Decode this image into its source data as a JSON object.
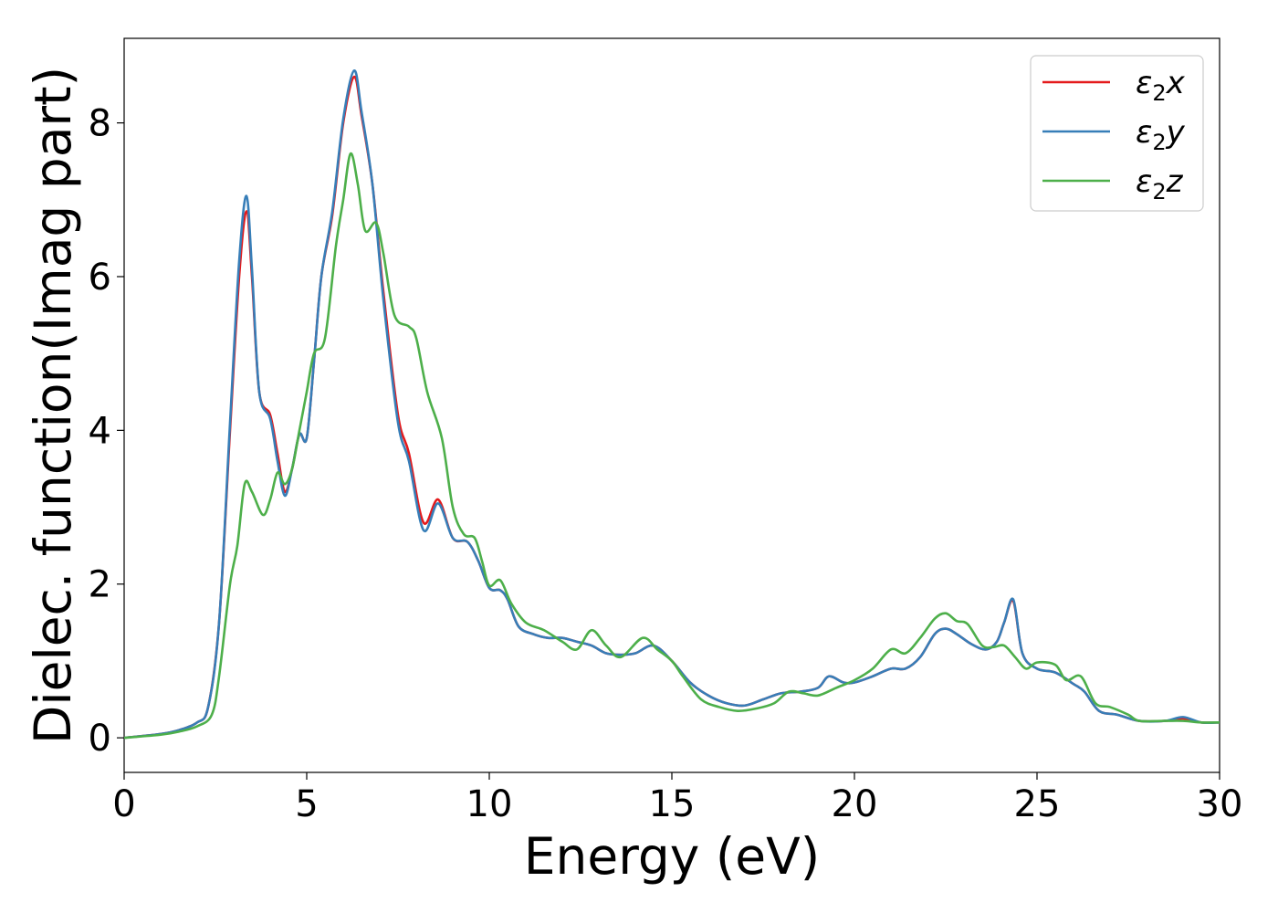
{
  "chart_data": {
    "type": "line",
    "title": "",
    "xlabel": "Energy (eV)",
    "ylabel": "Dielec. function(Imag part)",
    "xlim": [
      0,
      30
    ],
    "ylim": [
      -0.45,
      9.1
    ],
    "xticks": [
      0,
      5,
      10,
      15,
      20,
      25,
      30
    ],
    "yticks": [
      0,
      2,
      4,
      6,
      8
    ],
    "grid": false,
    "legend_position": "top-right",
    "series": [
      {
        "name": "ε₂x",
        "legend_base": "ε",
        "legend_sub": "2",
        "legend_suffix": "x",
        "color": "#e41a1c",
        "points": [
          [
            0,
            0
          ],
          [
            1,
            0.05
          ],
          [
            1.5,
            0.1
          ],
          [
            2,
            0.2
          ],
          [
            2.3,
            0.4
          ],
          [
            2.6,
            1.5
          ],
          [
            2.9,
            4.0
          ],
          [
            3.15,
            6.0
          ],
          [
            3.35,
            6.85
          ],
          [
            3.5,
            6.0
          ],
          [
            3.7,
            4.5
          ],
          [
            4.0,
            4.2
          ],
          [
            4.2,
            3.7
          ],
          [
            4.4,
            3.2
          ],
          [
            4.6,
            3.5
          ],
          [
            4.8,
            3.95
          ],
          [
            5.0,
            3.9
          ],
          [
            5.2,
            4.9
          ],
          [
            5.4,
            6.0
          ],
          [
            5.7,
            6.8
          ],
          [
            6.0,
            8.0
          ],
          [
            6.3,
            8.6
          ],
          [
            6.5,
            8.1
          ],
          [
            6.8,
            7.2
          ],
          [
            7.1,
            5.8
          ],
          [
            7.5,
            4.2
          ],
          [
            7.8,
            3.7
          ],
          [
            8.2,
            2.8
          ],
          [
            8.6,
            3.1
          ],
          [
            9.0,
            2.6
          ],
          [
            9.4,
            2.55
          ],
          [
            9.7,
            2.3
          ],
          [
            10.0,
            1.95
          ],
          [
            10.3,
            1.92
          ],
          [
            10.5,
            1.8
          ],
          [
            10.8,
            1.45
          ],
          [
            11.2,
            1.35
          ],
          [
            11.6,
            1.3
          ],
          [
            12.0,
            1.3
          ],
          [
            12.4,
            1.25
          ],
          [
            12.8,
            1.2
          ],
          [
            13.2,
            1.1
          ],
          [
            13.6,
            1.08
          ],
          [
            14.0,
            1.1
          ],
          [
            14.5,
            1.2
          ],
          [
            15.0,
            1.0
          ],
          [
            15.5,
            0.72
          ],
          [
            16.0,
            0.55
          ],
          [
            16.5,
            0.45
          ],
          [
            17.0,
            0.42
          ],
          [
            17.5,
            0.5
          ],
          [
            18.0,
            0.58
          ],
          [
            18.5,
            0.6
          ],
          [
            19.0,
            0.65
          ],
          [
            19.3,
            0.8
          ],
          [
            19.7,
            0.72
          ],
          [
            20.0,
            0.72
          ],
          [
            20.5,
            0.8
          ],
          [
            21.0,
            0.9
          ],
          [
            21.4,
            0.9
          ],
          [
            21.8,
            1.05
          ],
          [
            22.2,
            1.35
          ],
          [
            22.5,
            1.42
          ],
          [
            22.8,
            1.35
          ],
          [
            23.2,
            1.22
          ],
          [
            23.6,
            1.15
          ],
          [
            23.9,
            1.25
          ],
          [
            24.1,
            1.5
          ],
          [
            24.35,
            1.78
          ],
          [
            24.6,
            1.1
          ],
          [
            25.0,
            0.9
          ],
          [
            25.5,
            0.85
          ],
          [
            26.0,
            0.7
          ],
          [
            26.3,
            0.6
          ],
          [
            26.7,
            0.35
          ],
          [
            27.2,
            0.3
          ],
          [
            27.8,
            0.22
          ],
          [
            28.5,
            0.22
          ],
          [
            29.0,
            0.25
          ],
          [
            29.5,
            0.2
          ],
          [
            30.0,
            0.2
          ]
        ]
      },
      {
        "name": "ε₂y",
        "legend_base": "ε",
        "legend_sub": "2",
        "legend_suffix": "y",
        "color": "#377eb8",
        "points": [
          [
            0,
            0
          ],
          [
            1,
            0.05
          ],
          [
            1.5,
            0.1
          ],
          [
            2,
            0.2
          ],
          [
            2.3,
            0.4
          ],
          [
            2.6,
            1.5
          ],
          [
            2.9,
            4.1
          ],
          [
            3.15,
            6.2
          ],
          [
            3.35,
            7.05
          ],
          [
            3.5,
            6.1
          ],
          [
            3.7,
            4.5
          ],
          [
            4.0,
            4.15
          ],
          [
            4.2,
            3.6
          ],
          [
            4.4,
            3.15
          ],
          [
            4.6,
            3.5
          ],
          [
            4.8,
            3.95
          ],
          [
            5.0,
            3.9
          ],
          [
            5.2,
            4.9
          ],
          [
            5.4,
            6.0
          ],
          [
            5.7,
            6.85
          ],
          [
            6.0,
            8.05
          ],
          [
            6.3,
            8.68
          ],
          [
            6.5,
            8.15
          ],
          [
            6.8,
            7.2
          ],
          [
            7.1,
            5.7
          ],
          [
            7.5,
            4.1
          ],
          [
            7.8,
            3.6
          ],
          [
            8.2,
            2.7
          ],
          [
            8.6,
            3.05
          ],
          [
            9.0,
            2.6
          ],
          [
            9.4,
            2.55
          ],
          [
            9.7,
            2.3
          ],
          [
            10.0,
            1.95
          ],
          [
            10.3,
            1.92
          ],
          [
            10.5,
            1.8
          ],
          [
            10.8,
            1.45
          ],
          [
            11.2,
            1.35
          ],
          [
            11.6,
            1.3
          ],
          [
            12.0,
            1.3
          ],
          [
            12.4,
            1.25
          ],
          [
            12.8,
            1.2
          ],
          [
            13.2,
            1.1
          ],
          [
            13.6,
            1.08
          ],
          [
            14.0,
            1.1
          ],
          [
            14.5,
            1.2
          ],
          [
            15.0,
            1.0
          ],
          [
            15.5,
            0.72
          ],
          [
            16.0,
            0.55
          ],
          [
            16.5,
            0.45
          ],
          [
            17.0,
            0.42
          ],
          [
            17.5,
            0.5
          ],
          [
            18.0,
            0.58
          ],
          [
            18.5,
            0.6
          ],
          [
            19.0,
            0.65
          ],
          [
            19.3,
            0.8
          ],
          [
            19.7,
            0.72
          ],
          [
            20.0,
            0.72
          ],
          [
            20.5,
            0.8
          ],
          [
            21.0,
            0.9
          ],
          [
            21.4,
            0.9
          ],
          [
            21.8,
            1.05
          ],
          [
            22.2,
            1.35
          ],
          [
            22.5,
            1.42
          ],
          [
            22.8,
            1.35
          ],
          [
            23.2,
            1.22
          ],
          [
            23.6,
            1.15
          ],
          [
            23.9,
            1.25
          ],
          [
            24.1,
            1.5
          ],
          [
            24.35,
            1.8
          ],
          [
            24.6,
            1.1
          ],
          [
            25.0,
            0.9
          ],
          [
            25.5,
            0.85
          ],
          [
            26.0,
            0.7
          ],
          [
            26.3,
            0.6
          ],
          [
            26.7,
            0.35
          ],
          [
            27.2,
            0.3
          ],
          [
            27.8,
            0.22
          ],
          [
            28.5,
            0.22
          ],
          [
            29.0,
            0.27
          ],
          [
            29.5,
            0.2
          ],
          [
            30.0,
            0.2
          ]
        ]
      },
      {
        "name": "ε₂z",
        "legend_base": "ε",
        "legend_sub": "2",
        "legend_suffix": "z",
        "color": "#4daf4a",
        "points": [
          [
            0,
            0
          ],
          [
            1,
            0.04
          ],
          [
            1.5,
            0.08
          ],
          [
            2,
            0.15
          ],
          [
            2.4,
            0.3
          ],
          [
            2.6,
            0.8
          ],
          [
            2.9,
            2.0
          ],
          [
            3.1,
            2.5
          ],
          [
            3.3,
            3.3
          ],
          [
            3.5,
            3.2
          ],
          [
            3.8,
            2.9
          ],
          [
            4.0,
            3.1
          ],
          [
            4.2,
            3.45
          ],
          [
            4.4,
            3.3
          ],
          [
            4.6,
            3.5
          ],
          [
            4.8,
            4.0
          ],
          [
            5.0,
            4.5
          ],
          [
            5.2,
            5.0
          ],
          [
            5.5,
            5.2
          ],
          [
            5.8,
            6.4
          ],
          [
            6.0,
            7.0
          ],
          [
            6.2,
            7.6
          ],
          [
            6.4,
            7.2
          ],
          [
            6.6,
            6.6
          ],
          [
            6.9,
            6.7
          ],
          [
            7.1,
            6.3
          ],
          [
            7.4,
            5.5
          ],
          [
            7.8,
            5.35
          ],
          [
            8.0,
            5.2
          ],
          [
            8.3,
            4.5
          ],
          [
            8.7,
            3.9
          ],
          [
            9.0,
            3.0
          ],
          [
            9.3,
            2.65
          ],
          [
            9.6,
            2.6
          ],
          [
            9.8,
            2.3
          ],
          [
            10.0,
            1.98
          ],
          [
            10.3,
            2.05
          ],
          [
            10.6,
            1.75
          ],
          [
            11.0,
            1.5
          ],
          [
            11.5,
            1.4
          ],
          [
            12.0,
            1.25
          ],
          [
            12.4,
            1.15
          ],
          [
            12.8,
            1.4
          ],
          [
            13.2,
            1.2
          ],
          [
            13.6,
            1.05
          ],
          [
            14.2,
            1.3
          ],
          [
            14.6,
            1.15
          ],
          [
            15.0,
            1.0
          ],
          [
            15.3,
            0.8
          ],
          [
            15.8,
            0.5
          ],
          [
            16.3,
            0.4
          ],
          [
            16.8,
            0.35
          ],
          [
            17.3,
            0.38
          ],
          [
            17.8,
            0.45
          ],
          [
            18.2,
            0.6
          ],
          [
            18.6,
            0.58
          ],
          [
            19.0,
            0.55
          ],
          [
            19.5,
            0.65
          ],
          [
            20.0,
            0.75
          ],
          [
            20.5,
            0.9
          ],
          [
            21.0,
            1.15
          ],
          [
            21.4,
            1.1
          ],
          [
            21.8,
            1.3
          ],
          [
            22.2,
            1.55
          ],
          [
            22.5,
            1.62
          ],
          [
            22.8,
            1.52
          ],
          [
            23.1,
            1.48
          ],
          [
            23.5,
            1.2
          ],
          [
            23.8,
            1.18
          ],
          [
            24.1,
            1.2
          ],
          [
            24.4,
            1.05
          ],
          [
            24.7,
            0.9
          ],
          [
            25.0,
            0.98
          ],
          [
            25.5,
            0.95
          ],
          [
            25.8,
            0.75
          ],
          [
            26.2,
            0.8
          ],
          [
            26.6,
            0.45
          ],
          [
            27.0,
            0.4
          ],
          [
            27.5,
            0.3
          ],
          [
            27.8,
            0.22
          ],
          [
            28.5,
            0.22
          ],
          [
            29.0,
            0.22
          ],
          [
            29.5,
            0.2
          ],
          [
            30.0,
            0.2
          ]
        ]
      }
    ]
  }
}
